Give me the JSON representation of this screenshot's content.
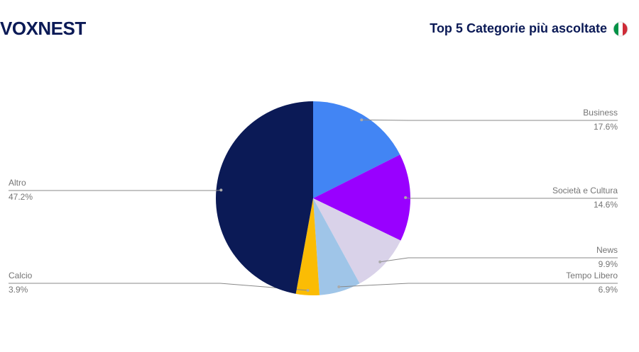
{
  "header": {
    "brand": "VOXNEST"
  },
  "chart_data": {
    "type": "pie",
    "title": "Top 5 Categorie più ascoltate",
    "categories": [
      "Business",
      "Società e Cultura",
      "News",
      "Tempo Libero",
      "Calcio",
      "Altro"
    ],
    "values": [
      17.6,
      14.6,
      9.9,
      6.9,
      3.9,
      47.2
    ],
    "value_labels": [
      "17.6%",
      "14.6%",
      "9.9%",
      "6.9%",
      "3.9%",
      "47.2%"
    ],
    "colors": [
      "#4285f4",
      "#9900ff",
      "#d9d2e9",
      "#9fc5e8",
      "#fbbc04",
      "#0b1a56"
    ]
  }
}
